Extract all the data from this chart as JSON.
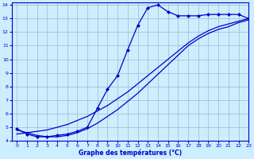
{
  "bg_color": "#cceeff",
  "line_color": "#0000cc",
  "grid_color": "#99bbcc",
  "xlabel": "Graphe des températures (°C)",
  "xlim": [
    -0.5,
    23
  ],
  "ylim": [
    4,
    14.2
  ],
  "yticks": [
    4,
    5,
    6,
    7,
    8,
    9,
    10,
    11,
    12,
    13,
    14
  ],
  "xticks": [
    0,
    1,
    2,
    3,
    4,
    5,
    6,
    7,
    8,
    9,
    10,
    11,
    12,
    13,
    14,
    15,
    16,
    17,
    18,
    19,
    20,
    21,
    22,
    23
  ],
  "line_measured_x": [
    0,
    1,
    2,
    3,
    4,
    5,
    6,
    7,
    8,
    9,
    10,
    11,
    12,
    13,
    14,
    15,
    16,
    17,
    18,
    19,
    20,
    21,
    22,
    23
  ],
  "line_measured_y": [
    4.9,
    4.5,
    4.3,
    4.3,
    4.4,
    4.5,
    4.7,
    5.0,
    6.4,
    7.8,
    8.8,
    10.7,
    12.5,
    13.8,
    14.0,
    13.5,
    13.2,
    13.2,
    13.2,
    13.3,
    13.3,
    13.3,
    13.3,
    13.0
  ],
  "line_avg_x": [
    0,
    1,
    2,
    3,
    4,
    5,
    6,
    7,
    8,
    9,
    10,
    11,
    12,
    13,
    14,
    15,
    16,
    17,
    18,
    19,
    20,
    21,
    22,
    23
  ],
  "line_avg_y": [
    4.5,
    4.6,
    4.7,
    4.8,
    5.0,
    5.2,
    5.5,
    5.8,
    6.2,
    6.6,
    7.1,
    7.6,
    8.2,
    8.8,
    9.4,
    10.0,
    10.6,
    11.2,
    11.7,
    12.1,
    12.4,
    12.6,
    12.8,
    13.0
  ],
  "line_min_x": [
    0,
    1,
    2,
    3,
    4,
    5,
    6,
    7,
    8,
    9,
    10,
    11,
    12,
    13,
    14,
    15,
    16,
    17,
    18,
    19,
    20,
    21,
    22,
    23
  ],
  "line_min_y": [
    4.8,
    4.6,
    4.4,
    4.3,
    4.3,
    4.4,
    4.6,
    4.9,
    5.3,
    5.8,
    6.3,
    6.9,
    7.5,
    8.2,
    8.9,
    9.6,
    10.3,
    11.0,
    11.5,
    11.9,
    12.2,
    12.4,
    12.7,
    12.9
  ]
}
